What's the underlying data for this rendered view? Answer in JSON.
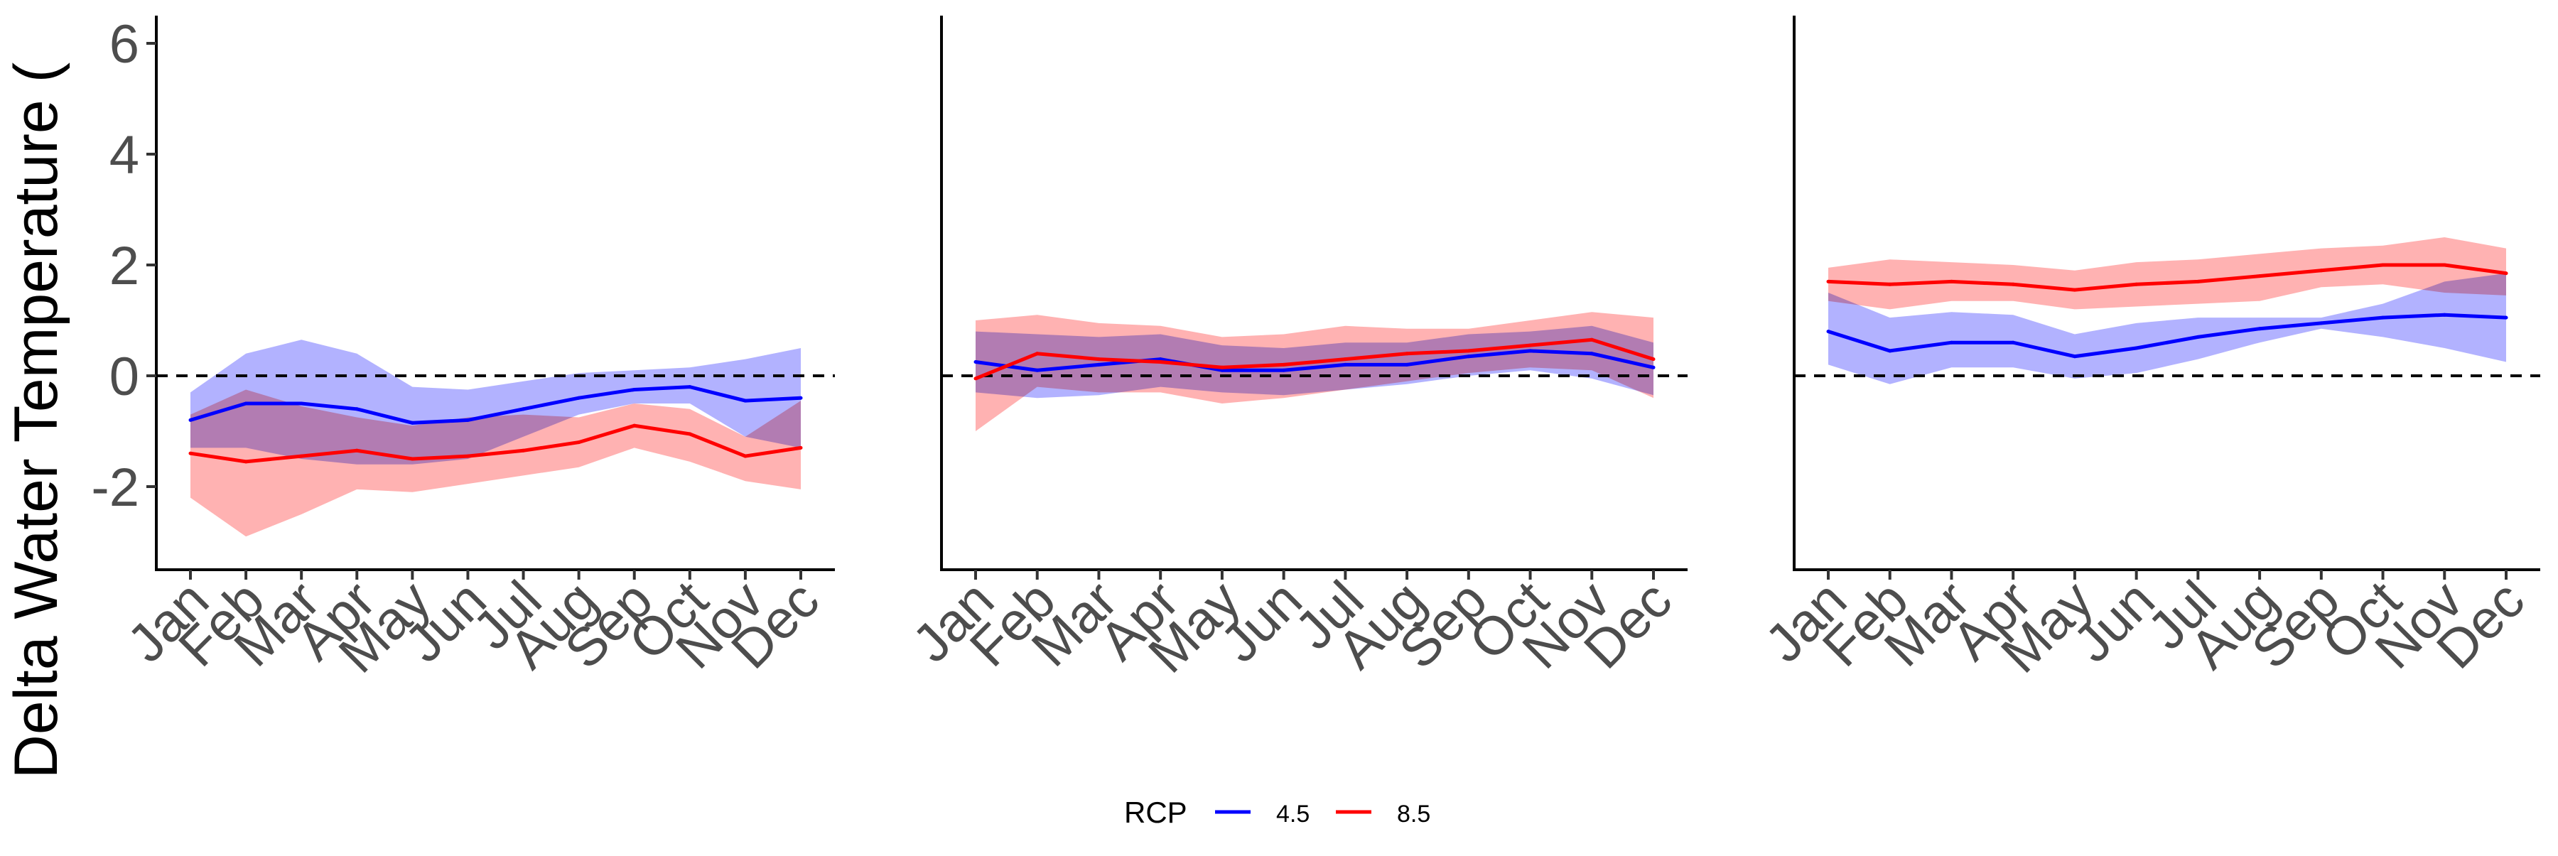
{
  "ylabel": "Delta Water Temperature (",
  "legend": {
    "title": "RCP",
    "entries": [
      {
        "name": "4.5",
        "color": "#0000ff"
      },
      {
        "name": "8.5",
        "color": "#ff0000"
      }
    ]
  },
  "colors": {
    "rcp45_line": "#0000ff",
    "rcp45_band": "#aaaaff",
    "rcp85_line": "#ff0000",
    "rcp85_band": "#ffaaaa",
    "zero_line": "#000000",
    "tick_text": "#4d4d4d"
  },
  "chart_data": [
    {
      "type": "line",
      "panel": 1,
      "categories": [
        "Jan",
        "Feb",
        "Mar",
        "Apr",
        "May",
        "Jun",
        "Jul",
        "Aug",
        "Sep",
        "Oct",
        "Nov",
        "Dec"
      ],
      "ylim": [
        -3.5,
        6.5
      ],
      "yticks": [
        -2,
        0,
        2,
        4,
        6
      ],
      "reference_line": 0,
      "series": [
        {
          "name": "4.5",
          "values": [
            -0.8,
            -0.5,
            -0.5,
            -0.6,
            -0.85,
            -0.8,
            -0.6,
            -0.4,
            -0.25,
            -0.2,
            -0.45,
            -0.4
          ],
          "lower": [
            -1.3,
            -1.3,
            -1.5,
            -1.6,
            -1.6,
            -1.5,
            -1.1,
            -0.7,
            -0.5,
            -0.5,
            -1.1,
            -1.3
          ],
          "upper": [
            -0.3,
            0.4,
            0.65,
            0.4,
            -0.2,
            -0.25,
            -0.1,
            0.05,
            0.1,
            0.15,
            0.3,
            0.5
          ]
        },
        {
          "name": "8.5",
          "values": [
            -1.4,
            -1.55,
            -1.45,
            -1.35,
            -1.5,
            -1.45,
            -1.35,
            -1.2,
            -0.9,
            -1.05,
            -1.45,
            -1.3
          ],
          "lower": [
            -2.2,
            -2.9,
            -2.5,
            -2.05,
            -2.1,
            -1.95,
            -1.8,
            -1.65,
            -1.3,
            -1.55,
            -1.9,
            -2.05
          ],
          "upper": [
            -0.7,
            -0.25,
            -0.55,
            -0.75,
            -0.9,
            -0.75,
            -0.7,
            -0.75,
            -0.5,
            -0.6,
            -1.1,
            -0.45
          ]
        }
      ]
    },
    {
      "type": "line",
      "panel": 2,
      "categories": [
        "Jan",
        "Feb",
        "Mar",
        "Apr",
        "May",
        "Jun",
        "Jul",
        "Aug",
        "Sep",
        "Oct",
        "Nov",
        "Dec"
      ],
      "ylim": [
        -3.5,
        6.5
      ],
      "yticks": [
        -2,
        0,
        2,
        4,
        6
      ],
      "reference_line": 0,
      "series": [
        {
          "name": "4.5",
          "values": [
            0.25,
            0.1,
            0.2,
            0.3,
            0.1,
            0.1,
            0.2,
            0.2,
            0.35,
            0.45,
            0.4,
            0.15
          ],
          "lower": [
            -0.3,
            -0.4,
            -0.35,
            -0.2,
            -0.3,
            -0.35,
            -0.25,
            -0.15,
            0.0,
            0.1,
            -0.05,
            -0.35
          ],
          "upper": [
            0.8,
            0.75,
            0.7,
            0.75,
            0.55,
            0.5,
            0.6,
            0.6,
            0.75,
            0.8,
            0.9,
            0.6
          ]
        },
        {
          "name": "8.5",
          "values": [
            -0.05,
            0.4,
            0.3,
            0.25,
            0.15,
            0.2,
            0.3,
            0.4,
            0.45,
            0.55,
            0.65,
            0.3
          ],
          "lower": [
            -1.0,
            -0.2,
            -0.3,
            -0.3,
            -0.5,
            -0.4,
            -0.25,
            -0.1,
            0.05,
            0.15,
            0.1,
            -0.4
          ],
          "upper": [
            1.0,
            1.1,
            0.95,
            0.9,
            0.7,
            0.75,
            0.9,
            0.85,
            0.85,
            1.0,
            1.15,
            1.05
          ]
        }
      ]
    },
    {
      "type": "line",
      "panel": 3,
      "categories": [
        "Jan",
        "Feb",
        "Mar",
        "Apr",
        "May",
        "Jun",
        "Jul",
        "Aug",
        "Sep",
        "Oct",
        "Nov",
        "Dec"
      ],
      "ylim": [
        -3.5,
        6.5
      ],
      "yticks": [
        -2,
        0,
        2,
        4,
        6
      ],
      "reference_line": 0,
      "series": [
        {
          "name": "4.5",
          "values": [
            0.8,
            0.45,
            0.6,
            0.6,
            0.35,
            0.5,
            0.7,
            0.85,
            0.95,
            1.05,
            1.1,
            1.05
          ],
          "lower": [
            0.2,
            -0.15,
            0.15,
            0.15,
            -0.05,
            0.05,
            0.3,
            0.6,
            0.85,
            0.7,
            0.5,
            0.25
          ],
          "upper": [
            1.5,
            1.05,
            1.15,
            1.1,
            0.75,
            0.95,
            1.05,
            1.05,
            1.05,
            1.3,
            1.7,
            1.85
          ]
        },
        {
          "name": "8.5",
          "values": [
            1.7,
            1.65,
            1.7,
            1.65,
            1.55,
            1.65,
            1.7,
            1.8,
            1.9,
            2.0,
            2.0,
            1.85
          ],
          "lower": [
            1.35,
            1.2,
            1.35,
            1.35,
            1.2,
            1.25,
            1.3,
            1.35,
            1.6,
            1.65,
            1.5,
            1.45
          ],
          "upper": [
            1.95,
            2.1,
            2.05,
            2.0,
            1.9,
            2.05,
            2.1,
            2.2,
            2.3,
            2.35,
            2.5,
            2.3
          ]
        }
      ]
    }
  ]
}
